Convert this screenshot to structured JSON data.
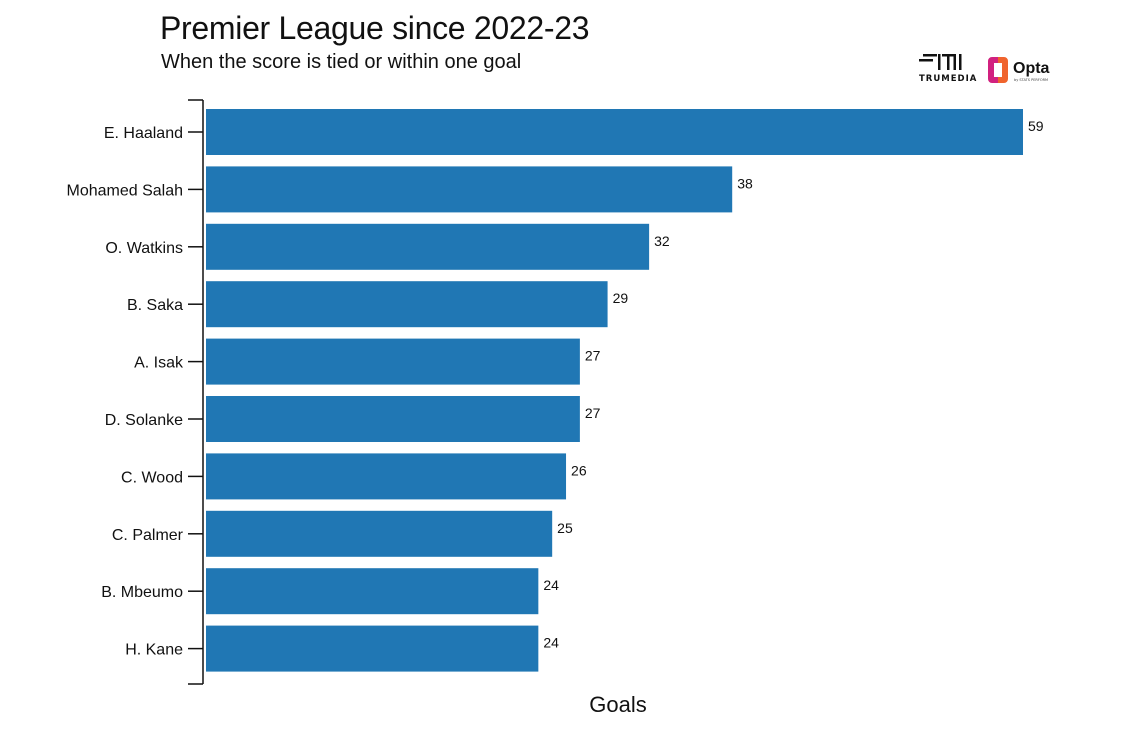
{
  "header": {
    "title": "Premier League since 2022-23",
    "subtitle": "When the score is tied or within one goal"
  },
  "logos": {
    "trumedia": "TRUMEDIA",
    "opta": "Opta",
    "opta_tag": "by STATS PERFORM"
  },
  "colors": {
    "bar": "#2077b4",
    "opta_orange": "#f0642d",
    "opta_magenta": "#d1217f"
  },
  "chart_data": {
    "type": "bar",
    "orientation": "horizontal",
    "categories": [
      "E. Haaland",
      "Mohamed Salah",
      "O. Watkins",
      "B. Saka",
      "A. Isak",
      "D. Solanke",
      "C. Wood",
      "C. Palmer",
      "B. Mbeumo",
      "H. Kane"
    ],
    "values": [
      59,
      38,
      32,
      29,
      27,
      27,
      26,
      25,
      24,
      24
    ],
    "xlabel": "Goals",
    "ylabel": "",
    "xlim": [
      0,
      59
    ],
    "data_labels": true,
    "grid": false,
    "legend": "none"
  }
}
